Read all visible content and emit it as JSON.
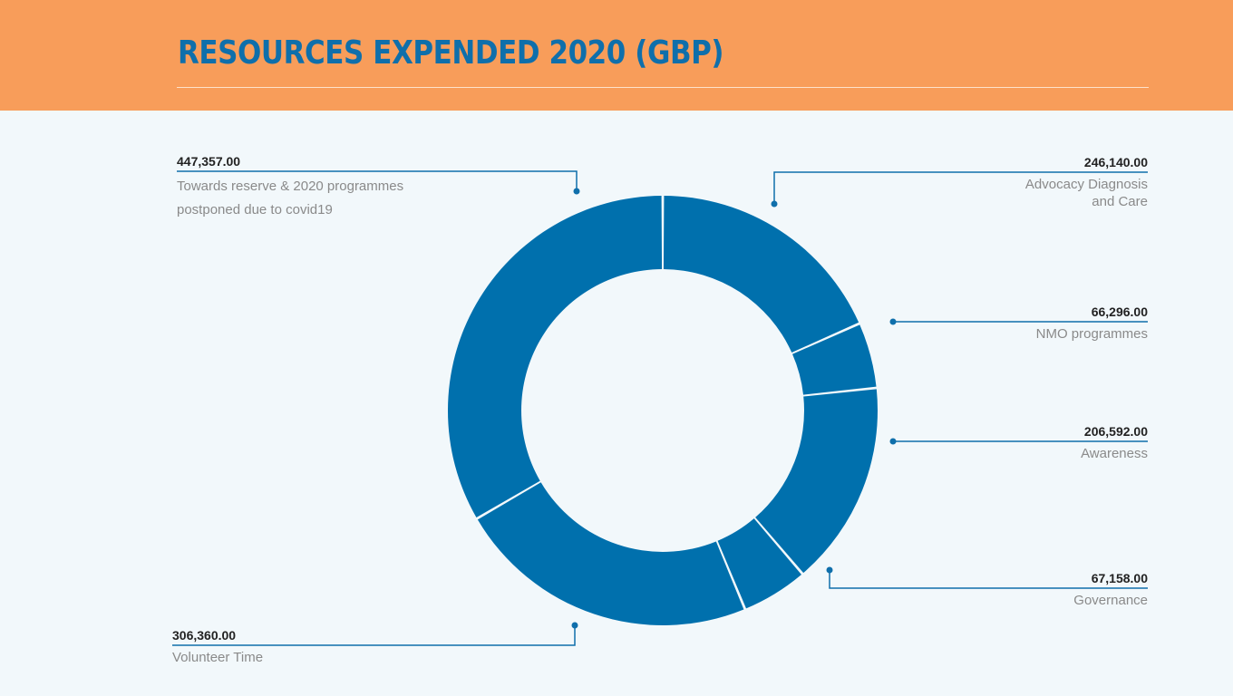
{
  "header": {
    "title": "RESOURCES EXPENDED 2020 (GBP)"
  },
  "colors": {
    "header_bg": "#f89d5a",
    "title": "#0f6fab",
    "slice": "#0070ad",
    "leader": "#0f6fab",
    "background": "#f2f8fb"
  },
  "chart_data": {
    "type": "pie",
    "variant": "donut",
    "title": "RESOURCES EXPENDED 2020 (GBP)",
    "slices": [
      {
        "label": "Advocacy Diagnosis and Care",
        "value": 246140.0,
        "value_label": "246,140.00"
      },
      {
        "label": "NMO programmes",
        "value": 66296.0,
        "value_label": "66,296.00"
      },
      {
        "label": "Awareness",
        "value": 206592.0,
        "value_label": "206,592.00"
      },
      {
        "label": "Governance",
        "value": 67158.0,
        "value_label": "67,158.00"
      },
      {
        "label": "Volunteer Time",
        "value": 306360.0,
        "value_label": "306,360.00"
      },
      {
        "label": "Towards reserve & 2020 programmes postponed due to covid19",
        "value": 447357.0,
        "value_label": "447,357.00"
      }
    ]
  }
}
